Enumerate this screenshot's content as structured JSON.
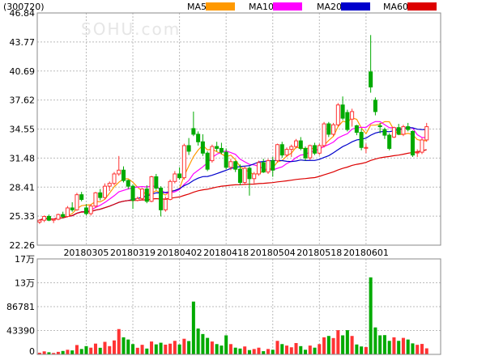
{
  "chart_data": {
    "type": "candlestick",
    "code": "(300720)",
    "watermark": "SOHU.com",
    "legend": [
      {
        "name": "MA5",
        "color": "#ff9900"
      },
      {
        "name": "MA10",
        "color": "#ff00ff"
      },
      {
        "name": "MA20",
        "color": "#0000cc"
      },
      {
        "name": "MA60",
        "color": "#dd0000"
      }
    ],
    "colors": {
      "up": "#ff3333",
      "down": "#00aa00",
      "grid": "#bbbbbb",
      "border": "#888888"
    },
    "price_axis": {
      "ticks": [
        "46.84",
        "43.77",
        "40.69",
        "37.62",
        "34.55",
        "31.48",
        "28.41",
        "25.33",
        "22.26"
      ],
      "ylim": [
        22.26,
        46.84
      ]
    },
    "volume_axis": {
      "ticks": [
        "17万",
        "13万",
        "86781",
        "43390",
        "0"
      ],
      "ylim": [
        0,
        173562
      ]
    },
    "date_labels": [
      {
        "label": "20180305",
        "index": 10
      },
      {
        "label": "20180319",
        "index": 20
      },
      {
        "label": "20180402",
        "index": 30
      },
      {
        "label": "20180418",
        "index": 40
      },
      {
        "label": "20180504",
        "index": 50
      },
      {
        "label": "20180518",
        "index": 60
      },
      {
        "label": "20180601",
        "index": 70
      }
    ],
    "candles": [
      [
        24.7,
        25.0,
        24.5,
        24.9,
        3000
      ],
      [
        24.9,
        25.4,
        24.7,
        25.3,
        5500
      ],
      [
        25.3,
        25.5,
        24.8,
        24.9,
        3800
      ],
      [
        24.9,
        25.1,
        24.6,
        25.0,
        2600
      ],
      [
        25.0,
        25.6,
        24.9,
        25.5,
        4600
      ],
      [
        25.5,
        25.8,
        25.1,
        25.3,
        6200
      ],
      [
        25.3,
        26.4,
        25.2,
        26.2,
        8400
      ],
      [
        26.2,
        26.8,
        25.8,
        26.0,
        7200
      ],
      [
        26.0,
        27.8,
        25.9,
        27.6,
        17000
      ],
      [
        27.6,
        27.9,
        26.9,
        27.1,
        9800
      ],
      [
        26.2,
        26.6,
        25.4,
        25.6,
        15000
      ],
      [
        25.6,
        26.6,
        25.4,
        26.4,
        12200
      ],
      [
        26.4,
        27.9,
        26.2,
        27.8,
        19600
      ],
      [
        27.8,
        28.2,
        27.0,
        27.3,
        12000
      ],
      [
        27.3,
        28.8,
        27.1,
        28.5,
        22800
      ],
      [
        28.5,
        29.0,
        28.0,
        28.8,
        15000
      ],
      [
        28.8,
        30.0,
        28.6,
        29.8,
        25400
      ],
      [
        29.8,
        31.7,
        29.6,
        30.2,
        46000
      ],
      [
        30.2,
        30.6,
        28.9,
        29.1,
        31000
      ],
      [
        29.1,
        29.2,
        28.2,
        28.5,
        27000
      ],
      [
        28.5,
        28.7,
        26.1,
        27.0,
        18700
      ],
      [
        27.0,
        27.4,
        26.9,
        27.2,
        12000
      ],
      [
        27.2,
        28.3,
        27.1,
        28.2,
        17400
      ],
      [
        28.2,
        28.6,
        26.7,
        26.9,
        10600
      ],
      [
        26.9,
        29.6,
        26.8,
        29.5,
        23400
      ],
      [
        29.5,
        29.8,
        28.1,
        28.3,
        18200
      ],
      [
        28.3,
        28.5,
        25.3,
        26.0,
        21200
      ],
      [
        26.0,
        27.4,
        25.8,
        27.1,
        17700
      ],
      [
        27.1,
        29.2,
        27.0,
        29.0,
        19500
      ],
      [
        29.0,
        30.1,
        28.8,
        29.8,
        24600
      ],
      [
        29.8,
        30.5,
        29.2,
        29.4,
        18000
      ],
      [
        29.4,
        33.0,
        29.2,
        32.8,
        28400
      ],
      [
        32.8,
        33.6,
        31.8,
        32.2,
        24200
      ],
      [
        34.6,
        36.4,
        33.8,
        34.0,
        96000
      ],
      [
        34.0,
        34.3,
        32.8,
        33.2,
        47000
      ],
      [
        33.2,
        34.0,
        31.7,
        32.0,
        37000
      ],
      [
        32.0,
        32.2,
        30.1,
        30.3,
        30000
      ],
      [
        31.2,
        32.9,
        31.0,
        32.7,
        23400
      ],
      [
        32.7,
        33.2,
        32.2,
        32.5,
        18700
      ],
      [
        32.5,
        33.1,
        31.9,
        32.1,
        16000
      ],
      [
        32.1,
        32.5,
        30.3,
        30.5,
        34600
      ],
      [
        30.5,
        31.4,
        30.2,
        31.1,
        18700
      ],
      [
        31.1,
        31.2,
        30.0,
        30.3,
        12200
      ],
      [
        30.3,
        30.8,
        28.6,
        28.9,
        10600
      ],
      [
        28.9,
        30.6,
        28.7,
        30.4,
        14400
      ],
      [
        30.4,
        30.6,
        27.5,
        29.3,
        7800
      ],
      [
        29.3,
        30.0,
        28.8,
        29.8,
        9800
      ],
      [
        29.8,
        31.2,
        29.6,
        31.0,
        12200
      ],
      [
        31.0,
        31.4,
        29.9,
        30.0,
        5800
      ],
      [
        30.0,
        31.4,
        29.8,
        31.2,
        9800
      ],
      [
        31.2,
        31.6,
        29.5,
        30.2,
        8400
      ],
      [
        31.2,
        33.0,
        31.0,
        32.9,
        24600
      ],
      [
        32.9,
        33.2,
        31.5,
        31.8,
        18700
      ],
      [
        31.8,
        32.6,
        31.6,
        32.4,
        16000
      ],
      [
        32.4,
        32.9,
        31.6,
        32.7,
        12900
      ],
      [
        32.7,
        33.5,
        32.5,
        33.3,
        20600
      ],
      [
        33.3,
        33.7,
        32.3,
        32.5,
        15000
      ],
      [
        32.5,
        32.7,
        31.2,
        31.5,
        8400
      ],
      [
        31.5,
        32.9,
        31.3,
        32.8,
        16000
      ],
      [
        32.8,
        33.1,
        31.8,
        32.0,
        12200
      ],
      [
        32.0,
        33.0,
        31.8,
        32.8,
        18700
      ],
      [
        32.8,
        35.3,
        32.6,
        35.1,
        31000
      ],
      [
        35.1,
        35.3,
        33.7,
        34.0,
        33500
      ],
      [
        34.0,
        35.2,
        33.8,
        35.0,
        29700
      ],
      [
        35.0,
        37.3,
        34.8,
        37.1,
        44000
      ],
      [
        37.1,
        38.0,
        35.5,
        35.7,
        34600
      ],
      [
        36.3,
        36.6,
        34.3,
        34.5,
        44000
      ],
      [
        35.6,
        36.7,
        34.8,
        36.4,
        33500
      ],
      [
        34.9,
        35.0,
        33.9,
        34.2,
        18000
      ],
      [
        34.2,
        34.6,
        32.3,
        32.6,
        14400
      ],
      [
        32.6,
        33.0,
        32.0,
        32.6,
        13300
      ],
      [
        40.6,
        44.5,
        38.4,
        39.0,
        140000
      ],
      [
        37.6,
        37.9,
        36.0,
        36.4,
        49000
      ],
      [
        34.9,
        35.2,
        34.1,
        34.8,
        34600
      ],
      [
        34.5,
        34.7,
        33.5,
        33.9,
        35000
      ],
      [
        33.9,
        34.1,
        32.3,
        32.5,
        24600
      ],
      [
        33.7,
        34.8,
        33.6,
        34.7,
        31000
      ],
      [
        34.7,
        35.1,
        33.9,
        34.0,
        24600
      ],
      [
        34.0,
        35.0,
        33.8,
        34.8,
        30000
      ],
      [
        34.8,
        35.2,
        34.3,
        34.5,
        27000
      ],
      [
        34.3,
        34.4,
        31.6,
        31.8,
        20000
      ],
      [
        32.1,
        32.4,
        31.6,
        32.1,
        17400
      ],
      [
        32.1,
        33.6,
        31.9,
        33.4,
        19000
      ],
      [
        33.4,
        35.2,
        33.2,
        34.8,
        11000
      ]
    ]
  }
}
